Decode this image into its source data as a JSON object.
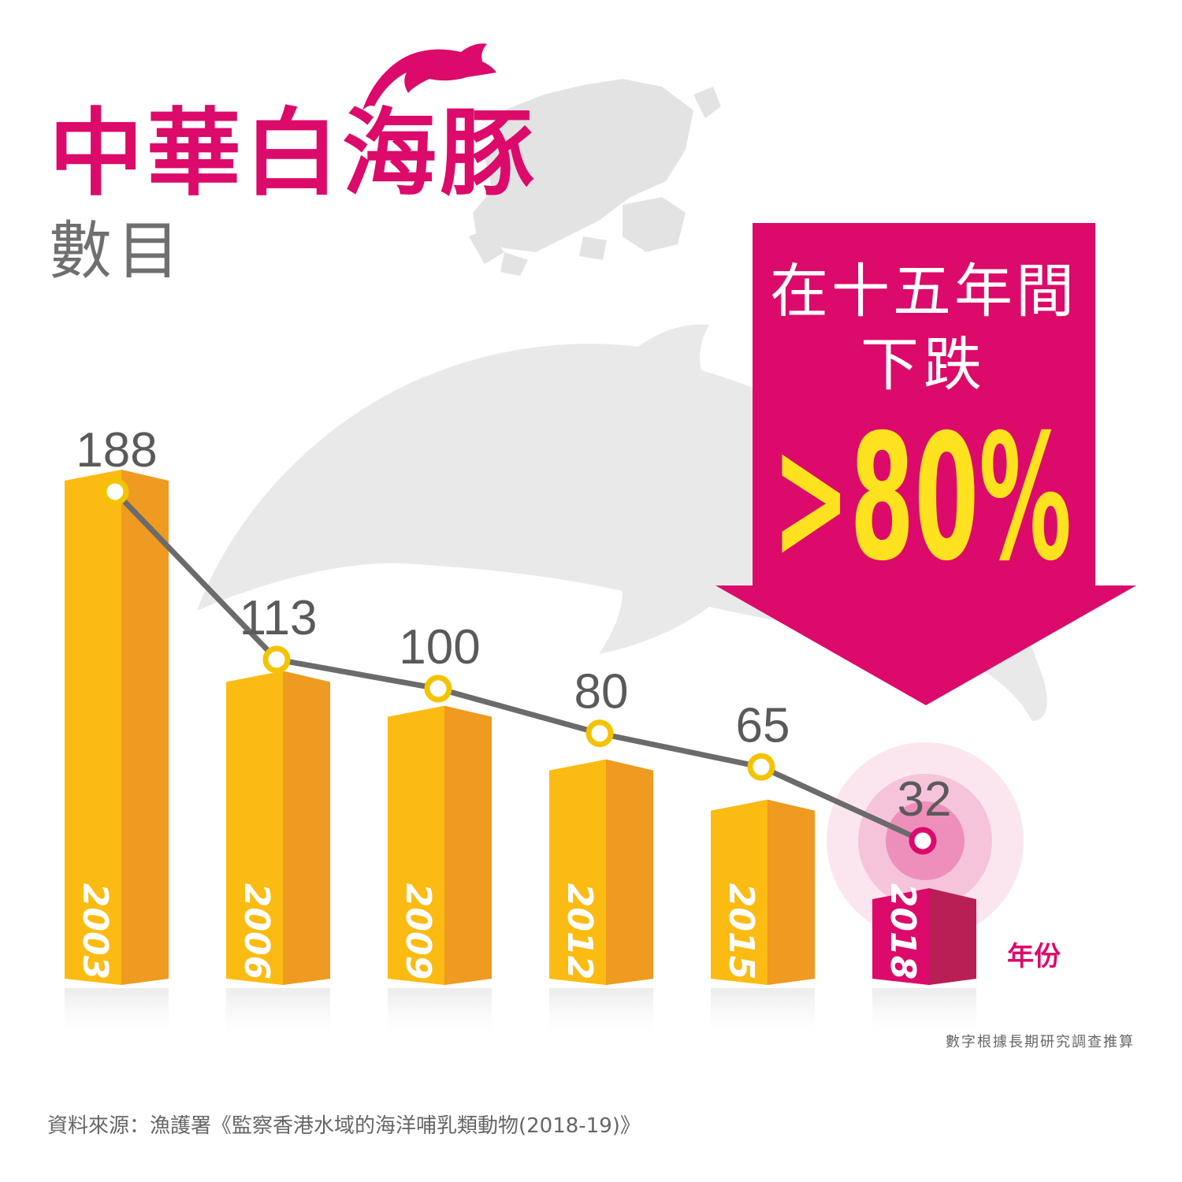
{
  "title": "中華白海豚",
  "subtitle": "數目",
  "callout": {
    "line1": "在十五年間",
    "line2": "下跌",
    "highlight": ">80%"
  },
  "x_axis_label": "年份",
  "footnote": "數字根據長期研究調查推算",
  "source": "資料來源：漁護署《監察香港水域的海洋哺乳類動物(2018-19)》",
  "colors": {
    "accent": "#dc0a6a",
    "bar_front": "#fbbb13",
    "bar_side": "#ef9a20",
    "bar_highlight_front": "#dc0a6a",
    "bar_highlight_side": "#b71f55",
    "line": "#6b6b6b",
    "marker": "#f4c300",
    "label": "#5a5a5a",
    "callout_text": "#ffe21f"
  },
  "icons": [
    "dolphin-icon",
    "hong-kong-map-icon",
    "dolphin-silhouette-icon",
    "down-arrow-icon"
  ],
  "chart_data": {
    "type": "bar",
    "categories": [
      "2003",
      "2006",
      "2009",
      "2012",
      "2015",
      "2018"
    ],
    "values": [
      188,
      113,
      100,
      80,
      65,
      32
    ],
    "highlight_index": 5,
    "overlay": "line",
    "ylim": [
      0,
      200
    ],
    "grid": false,
    "legend": "none"
  }
}
